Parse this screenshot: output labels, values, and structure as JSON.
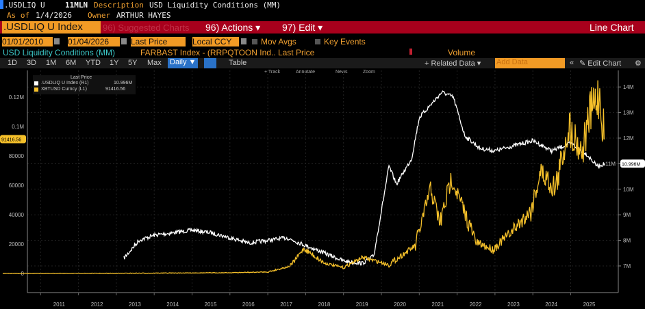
{
  "header": {
    "ticker": ".USDLIQ U",
    "code": "11MLN",
    "desc_label": "Description",
    "desc": "USD Liquidity Conditions (MM)",
    "asof_label": "As of",
    "asof": "1/4/2026",
    "owner_label": "Owner",
    "owner": "ARTHUR HAYES"
  },
  "menubar": {
    "security": ".USDLIQ U Index",
    "suggested": "96) Suggested Charts",
    "actions": "96) Actions ▾",
    "edit": "97) Edit ▾",
    "chart_type": "Line Chart"
  },
  "controls": {
    "start_date": "01/01/2010",
    "end_date": "01/04/2026",
    "field": "Last Price",
    "currency": "Local CCY",
    "mov_avgs": "Mov Avgs",
    "key_events": "Key Events"
  },
  "series_row": {
    "s1": "USD Liquidity Conditions (MM)",
    "s2": "FARBAST Index - (RRPQTOON Ind.. Last Price",
    "volume": "Volume"
  },
  "toolbar": {
    "ranges": [
      "1D",
      "3D",
      "1M",
      "6M",
      "YTD",
      "1Y",
      "5Y",
      "Max"
    ],
    "freq": "Daily ▼",
    "table": "Table",
    "related": "+ Related Data ▾",
    "add_data_placeholder": "Add Data",
    "edit_chart": "Edit Chart",
    "track": "+ Track",
    "annotate": "Annotate",
    "news": "News",
    "zoom": "Zoom"
  },
  "legend": {
    "title": "Last Price",
    "items": [
      {
        "name": ".USDLIQ U Index (R1)",
        "value": "10.996M",
        "color": "#ffffff"
      },
      {
        "name": "XBTUSD Curncy (L1)",
        "value": "91416.56",
        "color": "#f5c02a"
      }
    ]
  },
  "chart_data": {
    "type": "line",
    "x_ticks": [
      "2011",
      "2012",
      "2013",
      "2014",
      "2015",
      "2016",
      "2017",
      "2018",
      "2019",
      "2020",
      "2021",
      "2022",
      "2023",
      "2024",
      "2025"
    ],
    "left_axis": {
      "ticks": [
        0,
        20000,
        40000,
        60000,
        80000,
        100000,
        120000
      ],
      "tick_labels": [
        "0",
        "20000",
        "40000",
        "60000",
        "80000",
        "0.1M",
        "0.12M"
      ],
      "range": [
        0,
        130000
      ],
      "last_label": "91416.56"
    },
    "right_axis": {
      "ticks": [
        7,
        8,
        9,
        10,
        11,
        12,
        13,
        14
      ],
      "tick_labels": [
        "7M",
        "8M",
        "9M",
        "10M",
        "11M",
        "12M",
        "13M",
        "14M"
      ],
      "range": [
        6.7,
        14.5
      ],
      "last_label": "10.996M"
    },
    "grid": true,
    "series": [
      {
        "name": ".USDLIQ U Index (R1)",
        "axis": "right",
        "color": "#ffffff",
        "points": [
          [
            2013.2,
            7.3
          ],
          [
            2013.6,
            8.0
          ],
          [
            2014.0,
            8.2
          ],
          [
            2014.5,
            8.3
          ],
          [
            2015.0,
            8.4
          ],
          [
            2015.5,
            8.3
          ],
          [
            2016.0,
            8.1
          ],
          [
            2016.5,
            7.9
          ],
          [
            2017.0,
            8.0
          ],
          [
            2017.5,
            8.1
          ],
          [
            2018.0,
            7.8
          ],
          [
            2018.5,
            7.5
          ],
          [
            2019.0,
            7.2
          ],
          [
            2019.5,
            7.1
          ],
          [
            2019.8,
            7.4
          ],
          [
            2020.2,
            10.9
          ],
          [
            2020.4,
            10.2
          ],
          [
            2020.8,
            11.2
          ],
          [
            2021.0,
            12.8
          ],
          [
            2021.3,
            13.3
          ],
          [
            2021.6,
            13.8
          ],
          [
            2021.9,
            13.6
          ],
          [
            2022.2,
            12.1
          ],
          [
            2022.6,
            11.6
          ],
          [
            2023.0,
            11.5
          ],
          [
            2023.5,
            11.7
          ],
          [
            2024.0,
            11.9
          ],
          [
            2024.5,
            11.5
          ],
          [
            2025.0,
            11.8
          ],
          [
            2025.4,
            11.4
          ],
          [
            2025.7,
            10.9
          ],
          [
            2025.9,
            11.0
          ]
        ]
      },
      {
        "name": "XBTUSD Curncy (L1)",
        "axis": "left",
        "color": "#f5c02a",
        "points": [
          [
            2010.0,
            0
          ],
          [
            2013.0,
            100
          ],
          [
            2016.0,
            500
          ],
          [
            2017.0,
            1000
          ],
          [
            2017.6,
            5000
          ],
          [
            2017.95,
            17000
          ],
          [
            2018.5,
            7000
          ],
          [
            2019.0,
            4000
          ],
          [
            2019.5,
            11000
          ],
          [
            2020.2,
            6000
          ],
          [
            2020.9,
            19000
          ],
          [
            2021.3,
            58000
          ],
          [
            2021.55,
            34000
          ],
          [
            2021.85,
            65000
          ],
          [
            2022.5,
            21000
          ],
          [
            2022.95,
            16500
          ],
          [
            2023.5,
            30000
          ],
          [
            2023.95,
            43000
          ],
          [
            2024.2,
            69000
          ],
          [
            2024.6,
            58000
          ],
          [
            2024.95,
            100000
          ],
          [
            2025.3,
            83000
          ],
          [
            2025.5,
            108000
          ],
          [
            2025.75,
            122000
          ],
          [
            2025.9,
            91416.56
          ]
        ]
      }
    ]
  }
}
